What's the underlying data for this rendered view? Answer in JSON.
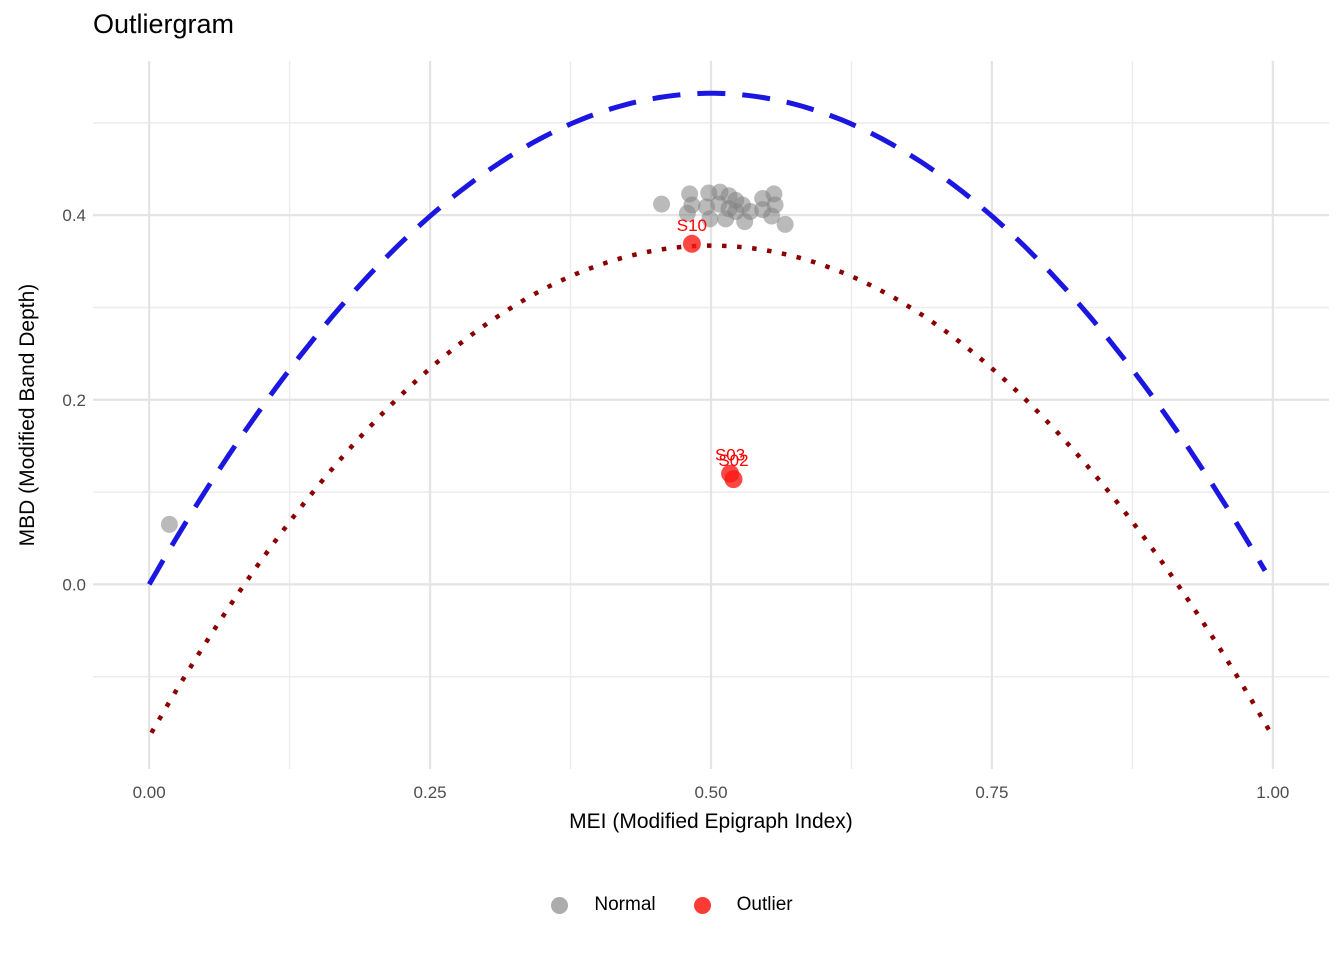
{
  "chart_data": {
    "type": "scatter",
    "title": "Outliergram",
    "xlabel": "MEI (Modified Epigraph Index)",
    "ylabel": "MBD (Modified Band Depth)",
    "xlim": [
      -0.05,
      1.05
    ],
    "ylim": [
      -0.2,
      0.567
    ],
    "grid": "major and minor gridlines, no axis lines, white background",
    "x_ticks": {
      "values": [
        0,
        0.25,
        0.5,
        0.75,
        1
      ],
      "labels": [
        "0.00",
        "0.25",
        "0.50",
        "0.75",
        "1.00"
      ]
    },
    "y_ticks": {
      "values": [
        0,
        0.2,
        0.4
      ],
      "labels": [
        "0.0",
        "0.2",
        "0.4"
      ]
    },
    "x_minor_ticks": [
      0.125,
      0.375,
      0.625,
      0.875
    ],
    "y_minor_ticks": [
      -0.1,
      0.1,
      0.3,
      0.5
    ],
    "colors": {
      "background": "#FFFFFF",
      "gridline_major": "#E4E4E4",
      "gridline_minor": "#ECECEC",
      "tick_label": "#4D4D4D",
      "title": "#000000"
    },
    "curves": [
      {
        "name": "maximum-mbd-parabola",
        "style": "dashed",
        "color": "#1B16E0",
        "equation": "MBD = 2.128 * MEI * (1 - MEI)",
        "a": 2.128,
        "offset": 0,
        "x_range": [
          0,
          0.993
        ],
        "stroke_width": 5,
        "dash": [
          28,
          17
        ]
      },
      {
        "name": "outlier-threshold-parabola",
        "style": "dotted",
        "color": "#8B0000",
        "equation": "MBD = 2.128 * MEI * (1 - MEI) - 0.165",
        "a": 2.128,
        "offset": -0.165,
        "x_range": [
          0.002,
          0.998
        ],
        "stroke_width": 4.5,
        "dash": [
          4.5,
          10.6
        ]
      }
    ],
    "series": [
      {
        "name": "Normal",
        "color": "rgba(130,130,130,0.55)",
        "radius": 8.5,
        "points": [
          [
            0.018,
            0.065
          ],
          [
            0.456,
            0.412
          ],
          [
            0.481,
            0.423
          ],
          [
            0.483,
            0.411
          ],
          [
            0.479,
            0.402
          ],
          [
            0.498,
            0.424
          ],
          [
            0.496,
            0.409
          ],
          [
            0.499,
            0.396
          ],
          [
            0.508,
            0.425
          ],
          [
            0.507,
            0.412
          ],
          [
            0.516,
            0.421
          ],
          [
            0.516,
            0.407
          ],
          [
            0.513,
            0.396
          ],
          [
            0.522,
            0.416
          ],
          [
            0.522,
            0.404
          ],
          [
            0.528,
            0.411
          ],
          [
            0.53,
            0.393
          ],
          [
            0.535,
            0.404
          ],
          [
            0.546,
            0.418
          ],
          [
            0.546,
            0.406
          ],
          [
            0.556,
            0.423
          ],
          [
            0.557,
            0.411
          ],
          [
            0.554,
            0.399
          ],
          [
            0.566,
            0.39
          ]
        ]
      },
      {
        "name": "Outlier",
        "color": "rgba(252,25,20,0.8)",
        "label_color": "#FF0000",
        "radius": 9,
        "points": [
          {
            "x": 0.483,
            "y": 0.369,
            "label": "S10"
          },
          {
            "x": 0.517,
            "y": 0.12,
            "label": "S03"
          },
          {
            "x": 0.52,
            "y": 0.114,
            "label": "S02"
          }
        ]
      }
    ],
    "legend": {
      "position": "bottom-center",
      "entries": [
        {
          "label": "Normal",
          "color": "#ACACAC"
        },
        {
          "label": "Outlier",
          "color": "#FC3B35"
        }
      ]
    }
  }
}
